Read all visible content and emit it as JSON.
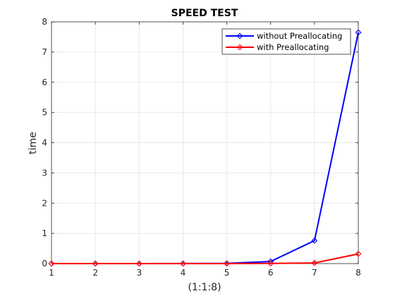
{
  "chart_data": {
    "type": "line",
    "title": "SPEED TEST",
    "xlabel": "(1:1:8)",
    "ylabel": "time",
    "x": [
      1,
      2,
      3,
      4,
      5,
      6,
      7,
      8
    ],
    "xlim": [
      1,
      8
    ],
    "ylim": [
      0,
      8
    ],
    "xticks": [
      1,
      2,
      3,
      4,
      5,
      6,
      7,
      8
    ],
    "yticks": [
      0,
      1,
      2,
      3,
      4,
      5,
      6,
      7,
      8
    ],
    "grid": true,
    "legend_position": "top-right",
    "series": [
      {
        "name": "without Preallocating",
        "color": "#0000ff",
        "marker": "diamond",
        "values": [
          0.0,
          0.0,
          0.0,
          0.002,
          0.01,
          0.07,
          0.76,
          7.65
        ]
      },
      {
        "name": "with Preallocating",
        "color": "#ff0000",
        "marker": "diamond",
        "values": [
          0.0,
          0.0,
          0.0,
          0.0,
          0.0,
          0.005,
          0.02,
          0.32
        ]
      }
    ]
  }
}
